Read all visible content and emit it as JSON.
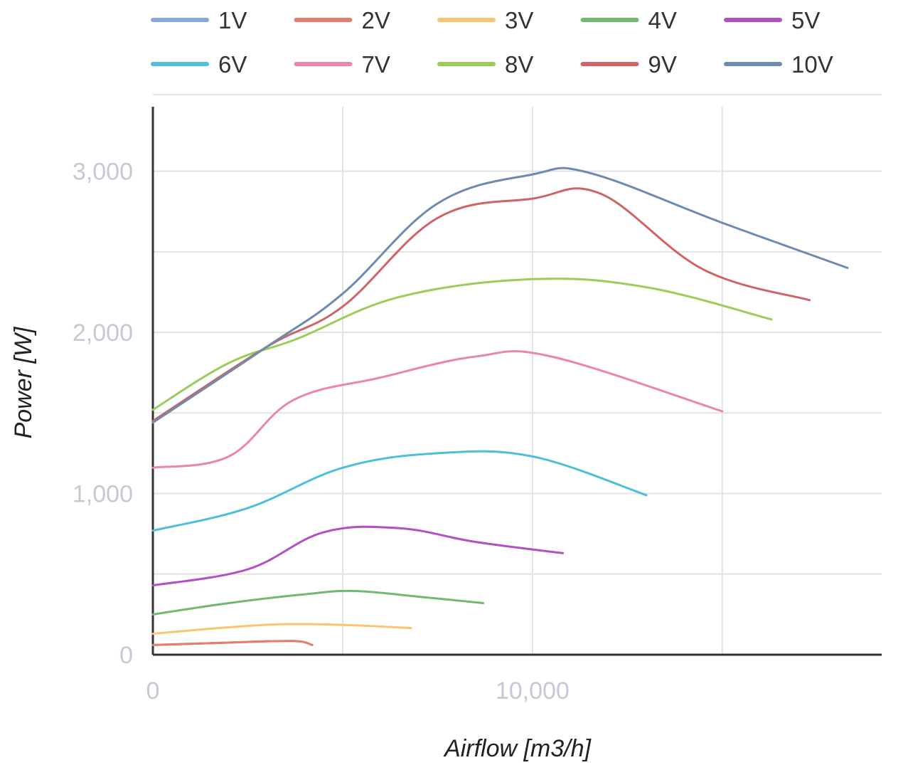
{
  "chart_data": {
    "type": "line",
    "xlabel": "Airflow [m3/h]",
    "ylabel": "Power [W]",
    "xlim": [
      0,
      19200
    ],
    "ylim": [
      0,
      3400
    ],
    "x_ticks": [
      {
        "value": 0,
        "label": "0"
      },
      {
        "value": 10000,
        "label": "10,000"
      }
    ],
    "y_ticks": [
      {
        "value": 0,
        "label": "0"
      },
      {
        "value": 1000,
        "label": "1,000"
      },
      {
        "value": 2000,
        "label": "2,000"
      },
      {
        "value": 3000,
        "label": "3,000"
      }
    ],
    "x_gridlines": [
      5000,
      10000,
      15000
    ],
    "y_gridlines": [
      500,
      1000,
      1500,
      2000,
      2500,
      3000
    ],
    "grid": true,
    "legend_position": "top",
    "series": [
      {
        "name": "1V",
        "color": "#86a7e0",
        "x": [
          0,
          2000,
          3700,
          4200
        ],
        "y": [
          60,
          75,
          85,
          60
        ]
      },
      {
        "name": "2V",
        "color": "#e67c6c",
        "x": [
          0,
          2000,
          3700,
          4200
        ],
        "y": [
          60,
          75,
          85,
          60
        ]
      },
      {
        "name": "3V",
        "color": "#fbc46e",
        "x": [
          0,
          2000,
          3500,
          5000,
          6800
        ],
        "y": [
          130,
          170,
          190,
          185,
          165
        ]
      },
      {
        "name": "4V",
        "color": "#6fba6f",
        "x": [
          0,
          2000,
          4000,
          5300,
          7000,
          8700
        ],
        "y": [
          250,
          320,
          375,
          395,
          360,
          320
        ]
      },
      {
        "name": "5V",
        "color": "#b34ec4",
        "x": [
          0,
          2500,
          4500,
          6500,
          8500,
          10800
        ],
        "y": [
          430,
          530,
          760,
          785,
          700,
          630
        ]
      },
      {
        "name": "6V",
        "color": "#4dbfd9",
        "x": [
          0,
          2500,
          5000,
          7500,
          10000,
          13000
        ],
        "y": [
          770,
          910,
          1160,
          1250,
          1230,
          990
        ]
      },
      {
        "name": "7V",
        "color": "#ea86a8",
        "x": [
          0,
          2000,
          3700,
          6000,
          8500,
          10500,
          15000
        ],
        "y": [
          1160,
          1230,
          1580,
          1720,
          1850,
          1850,
          1510
        ]
      },
      {
        "name": "8V",
        "color": "#9ccc59",
        "x": [
          0,
          2000,
          3800,
          6500,
          10000,
          13000,
          16300
        ],
        "y": [
          1520,
          1810,
          1960,
          2220,
          2330,
          2280,
          2080
        ]
      },
      {
        "name": "9V",
        "color": "#d06464",
        "x": [
          0,
          3000,
          5000,
          7500,
          10000,
          11800,
          14500,
          17300
        ],
        "y": [
          1450,
          1910,
          2160,
          2710,
          2830,
          2860,
          2390,
          2200
        ]
      },
      {
        "name": "10V",
        "color": "#6b8bb0",
        "x": [
          0,
          3000,
          5000,
          7500,
          10000,
          11500,
          15000,
          18300
        ],
        "y": [
          1440,
          1910,
          2240,
          2800,
          2980,
          2990,
          2680,
          2400
        ]
      }
    ]
  }
}
